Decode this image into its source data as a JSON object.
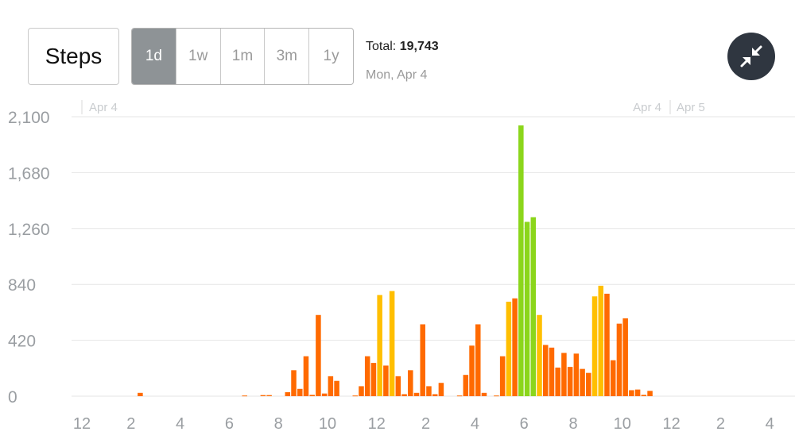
{
  "header": {
    "metric_label": "Steps",
    "ranges": [
      "1d",
      "1w",
      "1m",
      "3m",
      "1y"
    ],
    "active_range": "1d",
    "total_label": "Total:",
    "total_value": "19,743",
    "date": "Mon, Apr 4",
    "collapse_icon": "collapse-arrows-icon"
  },
  "colors": {
    "low": "#ff6a00",
    "medium": "#ffbf00",
    "high": "#8bd61b",
    "grid": "#e6e6e6",
    "axis_text": "#9a9ea2",
    "active_tab": "#8e9396"
  },
  "chart_data": {
    "type": "bar",
    "title": "",
    "xlabel": "",
    "ylabel": "",
    "ylim": [
      0,
      2100
    ],
    "y_ticks": [
      "0",
      "420",
      "840",
      "1,260",
      "1,680",
      "2,100"
    ],
    "x_tick_labels": [
      "12",
      "2",
      "4",
      "6",
      "8",
      "10",
      "12",
      "2",
      "4",
      "6",
      "8",
      "10",
      "12",
      "2",
      "4"
    ],
    "date_markers": [
      "Apr 4",
      "Apr 4",
      "Apr 5"
    ],
    "bar_interval_minutes": 15,
    "grid": true,
    "series": [
      {
        "values": [
          [
            2.25,
            25,
            "low"
          ],
          [
            6.5,
            5,
            "low"
          ],
          [
            7.25,
            8,
            "low"
          ],
          [
            7.5,
            8,
            "low"
          ],
          [
            8.25,
            30,
            "low"
          ],
          [
            8.5,
            195,
            "low"
          ],
          [
            8.75,
            55,
            "low"
          ],
          [
            9.0,
            300,
            "low"
          ],
          [
            9.25,
            10,
            "low"
          ],
          [
            9.5,
            610,
            "low"
          ],
          [
            9.75,
            20,
            "low"
          ],
          [
            10.0,
            150,
            "low"
          ],
          [
            10.25,
            115,
            "low"
          ],
          [
            11.0,
            5,
            "low"
          ],
          [
            11.25,
            75,
            "low"
          ],
          [
            11.5,
            300,
            "low"
          ],
          [
            11.75,
            250,
            "low"
          ],
          [
            12.0,
            760,
            "medium"
          ],
          [
            12.25,
            230,
            "low"
          ],
          [
            12.5,
            790,
            "medium"
          ],
          [
            12.75,
            150,
            "low"
          ],
          [
            13.0,
            15,
            "low"
          ],
          [
            13.25,
            195,
            "low"
          ],
          [
            13.5,
            25,
            "low"
          ],
          [
            13.75,
            540,
            "low"
          ],
          [
            14.0,
            75,
            "low"
          ],
          [
            14.25,
            15,
            "low"
          ],
          [
            14.5,
            100,
            "low"
          ],
          [
            15.25,
            5,
            "low"
          ],
          [
            15.5,
            160,
            "low"
          ],
          [
            15.75,
            380,
            "low"
          ],
          [
            16.0,
            540,
            "low"
          ],
          [
            16.25,
            25,
            "low"
          ],
          [
            16.75,
            5,
            "low"
          ],
          [
            17.0,
            300,
            "low"
          ],
          [
            17.25,
            710,
            "medium"
          ],
          [
            17.5,
            735,
            "low"
          ],
          [
            17.75,
            2035,
            "high"
          ],
          [
            18.0,
            1310,
            "high"
          ],
          [
            18.25,
            1345,
            "high"
          ],
          [
            18.5,
            610,
            "medium"
          ],
          [
            18.75,
            385,
            "low"
          ],
          [
            19.0,
            365,
            "low"
          ],
          [
            19.25,
            215,
            "low"
          ],
          [
            19.5,
            325,
            "low"
          ],
          [
            19.75,
            220,
            "low"
          ],
          [
            20.0,
            320,
            "low"
          ],
          [
            20.25,
            205,
            "low"
          ],
          [
            20.5,
            175,
            "low"
          ],
          [
            20.75,
            750,
            "medium"
          ],
          [
            21.0,
            830,
            "medium"
          ],
          [
            21.25,
            770,
            "low"
          ],
          [
            21.5,
            270,
            "low"
          ],
          [
            21.75,
            545,
            "low"
          ],
          [
            22.0,
            585,
            "low"
          ],
          [
            22.25,
            45,
            "low"
          ],
          [
            22.5,
            50,
            "low"
          ],
          [
            22.75,
            10,
            "low"
          ],
          [
            23.0,
            40,
            "low"
          ]
        ]
      }
    ]
  }
}
